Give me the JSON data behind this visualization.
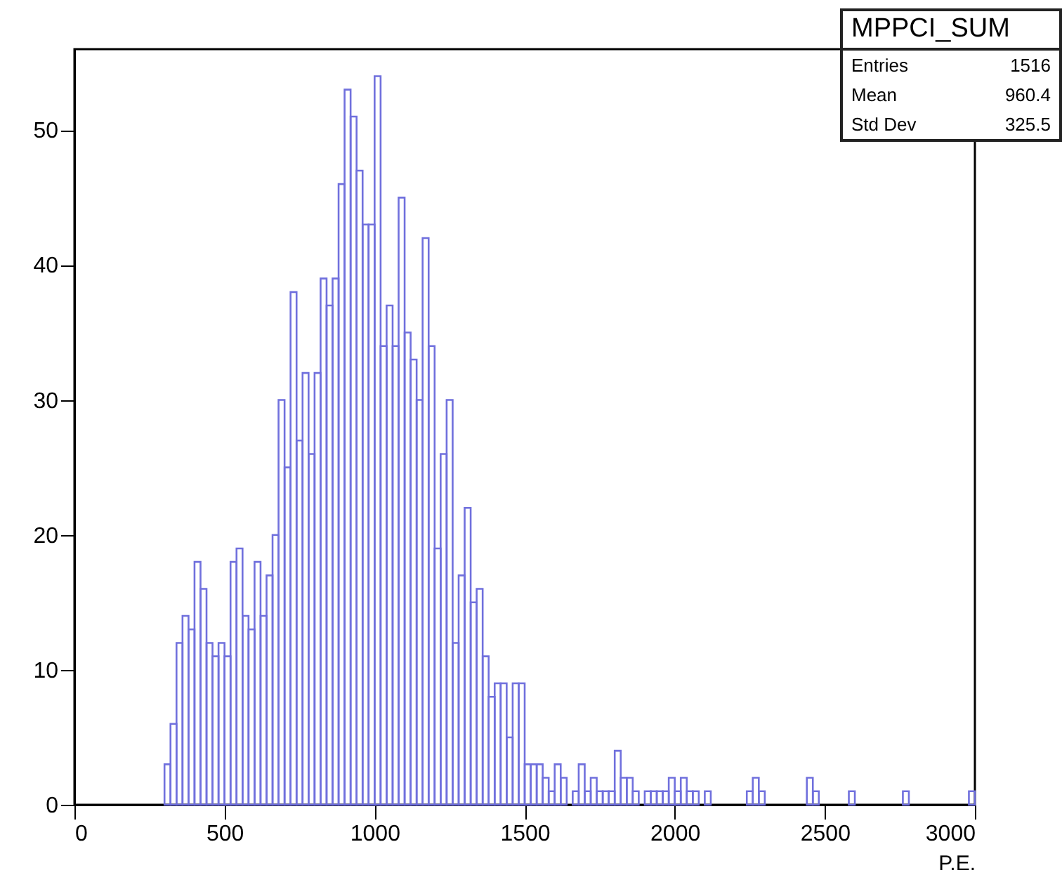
{
  "chart_data": {
    "type": "histogram",
    "xlabel": "P.E.",
    "bins": [
      0,
      20,
      40,
      60,
      80,
      100,
      120,
      140,
      160,
      180,
      200,
      220,
      240,
      260,
      280,
      300,
      320,
      340,
      360,
      380,
      400,
      420,
      440,
      460,
      480,
      500,
      520,
      540,
      560,
      580,
      600,
      620,
      640,
      660,
      680,
      700,
      720,
      740,
      760,
      780,
      800,
      820,
      840,
      860,
      880,
      900,
      920,
      940,
      960,
      980,
      1000,
      1020,
      1040,
      1060,
      1080,
      1100,
      1120,
      1140,
      1160,
      1180,
      1200,
      1220,
      1240,
      1260,
      1280,
      1300,
      1320,
      1340,
      1360,
      1380,
      1400,
      1420,
      1440,
      1460,
      1480,
      1500,
      1520,
      1540,
      1560,
      1580,
      1600,
      1620,
      1640,
      1660,
      1680,
      1700,
      1720,
      1740,
      1760,
      1780,
      1800,
      1820,
      1840,
      1860,
      1880,
      1900,
      1920,
      1940,
      1960,
      1980,
      2000,
      2020,
      2040,
      2060,
      2080,
      2100,
      2120,
      2140,
      2160,
      2180,
      2200,
      2220,
      2240,
      2260,
      2280,
      2300,
      2320,
      2340,
      2360,
      2380,
      2400,
      2420,
      2440,
      2460,
      2480,
      2500,
      2520,
      2540,
      2560,
      2580,
      2600,
      2620,
      2640,
      2660,
      2680,
      2700,
      2720,
      2740,
      2760,
      2780,
      2800,
      2820,
      2840,
      2860,
      2880,
      2900,
      2920,
      2940,
      2960,
      2980,
      3000
    ],
    "values": [
      0,
      0,
      0,
      0,
      0,
      0,
      0,
      0,
      0,
      0,
      0,
      0,
      0,
      0,
      0,
      3,
      6,
      12,
      14,
      13,
      18,
      16,
      12,
      11,
      12,
      11,
      18,
      19,
      14,
      13,
      18,
      14,
      17,
      20,
      30,
      25,
      38,
      27,
      32,
      26,
      32,
      39,
      37,
      39,
      46,
      53,
      51,
      47,
      43,
      43,
      54,
      34,
      37,
      34,
      45,
      35,
      33,
      30,
      42,
      34,
      19,
      26,
      30,
      12,
      17,
      22,
      15,
      16,
      11,
      8,
      9,
      9,
      5,
      9,
      9,
      3,
      3,
      3,
      2,
      1,
      3,
      2,
      0,
      1,
      3,
      1,
      2,
      1,
      1,
      1,
      4,
      2,
      2,
      1,
      0,
      1,
      1,
      1,
      1,
      2,
      1,
      2,
      1,
      1,
      0,
      1,
      0,
      0,
      0,
      0,
      0,
      0,
      1,
      2,
      1,
      0,
      0,
      0,
      0,
      0,
      0,
      0,
      2,
      1,
      0,
      0,
      0,
      0,
      0,
      1,
      0,
      0,
      0,
      0,
      0,
      0,
      0,
      0,
      1,
      0,
      0,
      0,
      0,
      0,
      0,
      0,
      0,
      0,
      0,
      1
    ],
    "color": "#7070dd",
    "xlim": [
      0,
      3000
    ],
    "xticks": [
      0,
      500,
      1000,
      1500,
      2000,
      2500,
      3000
    ],
    "ylim": [
      0,
      56
    ],
    "yticks": [
      0,
      10,
      20,
      30,
      40,
      50
    ],
    "grid": false,
    "annotations": [
      "MPPCI_SUM",
      "Entries 1516",
      "Mean 960.4",
      "Std Dev 325.5"
    ]
  }
}
